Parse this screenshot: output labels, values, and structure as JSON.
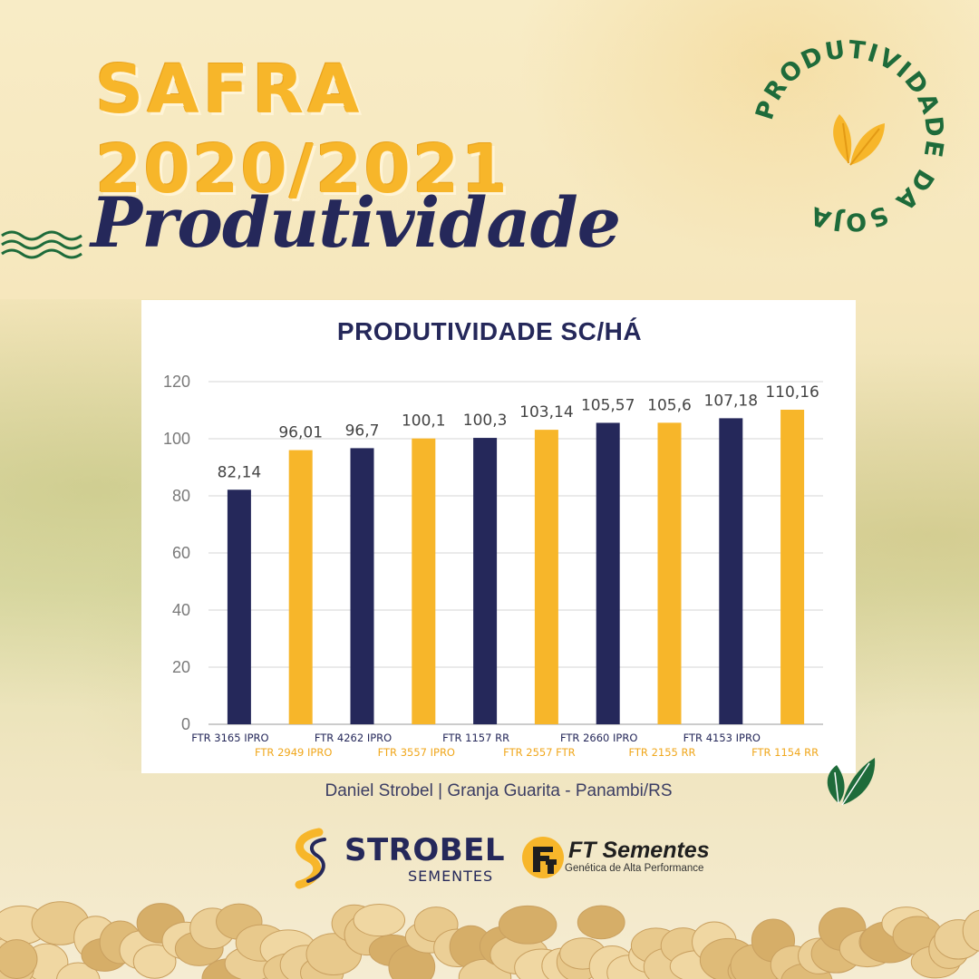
{
  "header": {
    "line1": "SAFRA",
    "line2": "2020/2021",
    "line3": "Produtividade"
  },
  "badge": {
    "text": "PRODUTIVIDADE DA SOJA",
    "color": "#1e6b3a"
  },
  "chart_data": {
    "type": "bar",
    "title": "PRODUTIVIDADE SC/HÁ",
    "categories": [
      "FTR 3165 IPRO",
      "FTR 2949 IPRO",
      "FTR 4262 IPRO",
      "FTR 3557 IPRO",
      "FTR 1157 RR",
      "FTR 2557 FTR",
      "FTR 2660 IPRO",
      "FTR 2155 RR",
      "FTR 4153 IPRO",
      "FTR 1154 RR"
    ],
    "values": [
      82.14,
      96.01,
      96.7,
      100.1,
      100.3,
      103.14,
      105.57,
      105.6,
      107.18,
      110.16
    ],
    "data_labels": [
      "82,14",
      "96,01",
      "96,7",
      "100,1",
      "100,3",
      "103,14",
      "105,57",
      "105,6",
      "107,18",
      "110,16"
    ],
    "bar_colors": [
      "#25285a",
      "#f7b62a",
      "#25285a",
      "#f7b62a",
      "#25285a",
      "#f7b62a",
      "#25285a",
      "#f7b62a",
      "#25285a",
      "#f7b62a"
    ],
    "ylim": [
      0,
      120
    ],
    "yticks": [
      0,
      20,
      40,
      60,
      80,
      100,
      120
    ],
    "grid": true,
    "xlabel": "",
    "ylabel": ""
  },
  "source": "Daniel Strobel | Granja Guarita - Panambi/RS",
  "logos": {
    "strobel_name": "STROBEL",
    "strobel_sub": "SEMENTES",
    "ft_name": "FT Sementes",
    "ft_tagline": "Genética de Alta Performance"
  },
  "colors": {
    "navy": "#25285a",
    "gold": "#f7b62a",
    "badge_green": "#1e6b3a"
  }
}
